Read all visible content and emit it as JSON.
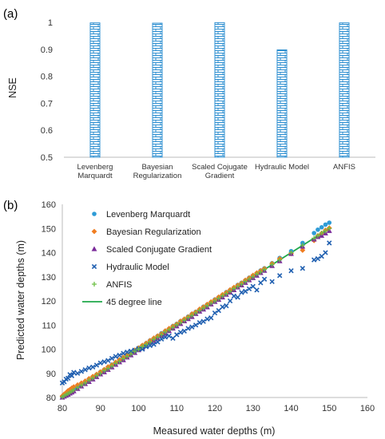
{
  "chart_data": [
    {
      "panel_label": "(a)",
      "type": "bar",
      "title": "",
      "xlabel": "",
      "ylabel": "NSE",
      "ylim": [
        0.5,
        1.0
      ],
      "yticks": [
        "0.5",
        "0.6",
        "0.7",
        "0.8",
        "0.9",
        "1"
      ],
      "categories": [
        [
          "Levenberg",
          "Marquardt"
        ],
        [
          "Bayesian",
          "Regularization"
        ],
        [
          "Scaled Cojugate",
          "Gradient"
        ],
        [
          "Hydraulic Model"
        ],
        [
          "ANFIS"
        ]
      ],
      "values": [
        0.998,
        0.997,
        0.999,
        0.898,
        0.998
      ],
      "bar_color": "#2e8fd0",
      "bar_pattern": "brick",
      "grid": false
    },
    {
      "panel_label": "(b)",
      "type": "scatter",
      "title": "",
      "xlabel": "Measured water depths (m)",
      "ylabel": "Predicted water depths (m)",
      "xlim": [
        80,
        160
      ],
      "ylim": [
        80,
        160
      ],
      "xticks": [
        "80",
        "90",
        "100",
        "110",
        "120",
        "130",
        "140",
        "150",
        "160"
      ],
      "yticks": [
        "80",
        "90",
        "100",
        "110",
        "120",
        "130",
        "140",
        "150",
        "160"
      ],
      "grid": false,
      "legend_position": "top-left",
      "x": [
        80,
        80.5,
        81,
        81.5,
        82,
        82.5,
        83,
        84,
        85,
        86,
        87,
        88,
        89,
        90,
        91,
        92,
        93,
        94,
        95,
        96,
        97,
        98,
        99,
        100,
        101,
        102,
        103,
        104,
        105,
        106,
        107,
        108,
        109,
        110,
        111,
        112,
        113,
        114,
        115,
        116,
        117,
        118,
        119,
        120,
        121,
        122,
        123,
        124,
        125,
        126,
        127,
        128,
        129,
        130,
        131,
        132,
        133,
        135,
        137,
        140,
        143,
        146,
        147,
        148,
        149,
        150
      ],
      "series": [
        {
          "name": "Levenberg Marquardt",
          "marker": "circle",
          "color": "#2e9bd6",
          "values": [
            80.3,
            80.9,
            81.6,
            82.1,
            82.6,
            83.0,
            83.5,
            84.6,
            85.5,
            86.5,
            87.6,
            88.5,
            89.5,
            90.6,
            91.5,
            92.5,
            93.6,
            94.4,
            95.6,
            96.5,
            97.4,
            98.6,
            99.5,
            100.6,
            101.5,
            102.5,
            103.6,
            104.4,
            105.5,
            106.6,
            107.5,
            108.4,
            109.6,
            110.5,
            111.6,
            112.4,
            113.5,
            114.6,
            115.5,
            116.4,
            117.6,
            118.5,
            119.4,
            120.6,
            121.5,
            122.4,
            123.6,
            124.5,
            125.4,
            126.6,
            127.5,
            128.5,
            129.6,
            130.5,
            131.4,
            132.6,
            133.5,
            135.6,
            137.8,
            140.6,
            144.0,
            148.1,
            149.5,
            150.5,
            151.6,
            152.4
          ]
        },
        {
          "name": "Bayesian Regularization",
          "marker": "diamond",
          "color": "#f07d21",
          "values": [
            80.6,
            81.4,
            82.0,
            82.8,
            83.3,
            83.9,
            84.4,
            85.2,
            86.0,
            86.8,
            87.8,
            88.7,
            89.6,
            90.6,
            91.6,
            92.7,
            93.5,
            94.6,
            95.6,
            96.6,
            97.5,
            98.5,
            99.6,
            100.5,
            101.6,
            102.5,
            103.6,
            104.6,
            105.5,
            106.4,
            107.6,
            108.6,
            109.5,
            110.4,
            111.6,
            112.5,
            113.4,
            114.6,
            115.4,
            116.6,
            117.5,
            118.6,
            119.6,
            120.5,
            121.6,
            122.6,
            123.5,
            124.6,
            125.6,
            126.5,
            127.4,
            128.6,
            129.5,
            130.6,
            131.6,
            132.5,
            133.4,
            135.5,
            137.5,
            139.6,
            141.0,
            145.0,
            147.0,
            148.0,
            149.3,
            150.2
          ]
        },
        {
          "name": "Scaled Conjugate Gradient",
          "marker": "triangle",
          "color": "#7a2a9a",
          "values": [
            80.0,
            80.4,
            80.8,
            81.2,
            81.7,
            82.1,
            82.6,
            83.6,
            84.6,
            85.6,
            86.5,
            87.5,
            88.5,
            89.6,
            90.5,
            91.5,
            92.5,
            93.6,
            94.6,
            95.5,
            96.6,
            97.5,
            98.5,
            99.6,
            100.5,
            101.5,
            102.6,
            103.5,
            104.5,
            105.6,
            106.5,
            107.5,
            108.6,
            109.5,
            110.5,
            111.6,
            112.5,
            113.4,
            114.6,
            115.6,
            116.5,
            117.4,
            118.6,
            119.6,
            120.5,
            121.5,
            122.6,
            123.5,
            124.5,
            125.6,
            126.5,
            127.5,
            128.6,
            129.5,
            130.5,
            131.6,
            132.5,
            134.5,
            136.5,
            139.5,
            142.5,
            145.5,
            146.5,
            147.0,
            148.0,
            149.0
          ]
        },
        {
          "name": "Hydraulic Model",
          "marker": "x",
          "color": "#1f5fb0",
          "values": [
            86.0,
            86.5,
            87.6,
            88.0,
            89.5,
            89.0,
            90.4,
            90.0,
            90.8,
            91.5,
            92.2,
            92.6,
            93.4,
            94.3,
            94.8,
            95.3,
            96.2,
            97.0,
            97.5,
            98.3,
            98.8,
            99.2,
            99.6,
            100.2,
            100.0,
            101.0,
            101.5,
            102.0,
            103.0,
            104.2,
            105.0,
            105.5,
            104.5,
            106.0,
            107.0,
            107.5,
            108.6,
            109.2,
            110.0,
            111.0,
            111.5,
            112.5,
            113.0,
            115.0,
            116.0,
            117.5,
            118.0,
            120.0,
            122.0,
            121.5,
            123.5,
            124.0,
            125.0,
            126.0,
            124.5,
            127.5,
            129.0,
            128.0,
            130.5,
            132.5,
            133.5,
            137.0,
            137.5,
            138.5,
            140.0,
            144.0
          ]
        },
        {
          "name": "ANFIS",
          "marker": "plus",
          "color": "#6cbf45",
          "values": [
            80.2,
            80.7,
            81.2,
            81.6,
            82.1,
            82.6,
            83.1,
            84.1,
            85.1,
            86.0,
            87.1,
            88.0,
            89.1,
            90.0,
            91.1,
            92.0,
            93.0,
            94.1,
            95.0,
            96.1,
            97.0,
            98.0,
            99.1,
            100.0,
            101.1,
            102.0,
            103.0,
            104.1,
            105.0,
            106.0,
            107.1,
            108.0,
            109.0,
            110.1,
            111.0,
            112.0,
            113.1,
            114.0,
            115.0,
            116.1,
            117.0,
            118.0,
            119.1,
            120.0,
            121.0,
            122.1,
            123.0,
            124.0,
            125.1,
            126.0,
            127.0,
            128.1,
            129.0,
            130.0,
            131.1,
            132.0,
            133.0,
            135.1,
            137.0,
            140.0,
            143.1,
            146.0,
            147.0,
            148.1,
            149.0,
            150.0
          ]
        },
        {
          "name": "45 degree line",
          "type": "line",
          "color": "#1fa84a",
          "x": [
            80,
            150
          ],
          "values": [
            80,
            150
          ]
        }
      ]
    }
  ]
}
